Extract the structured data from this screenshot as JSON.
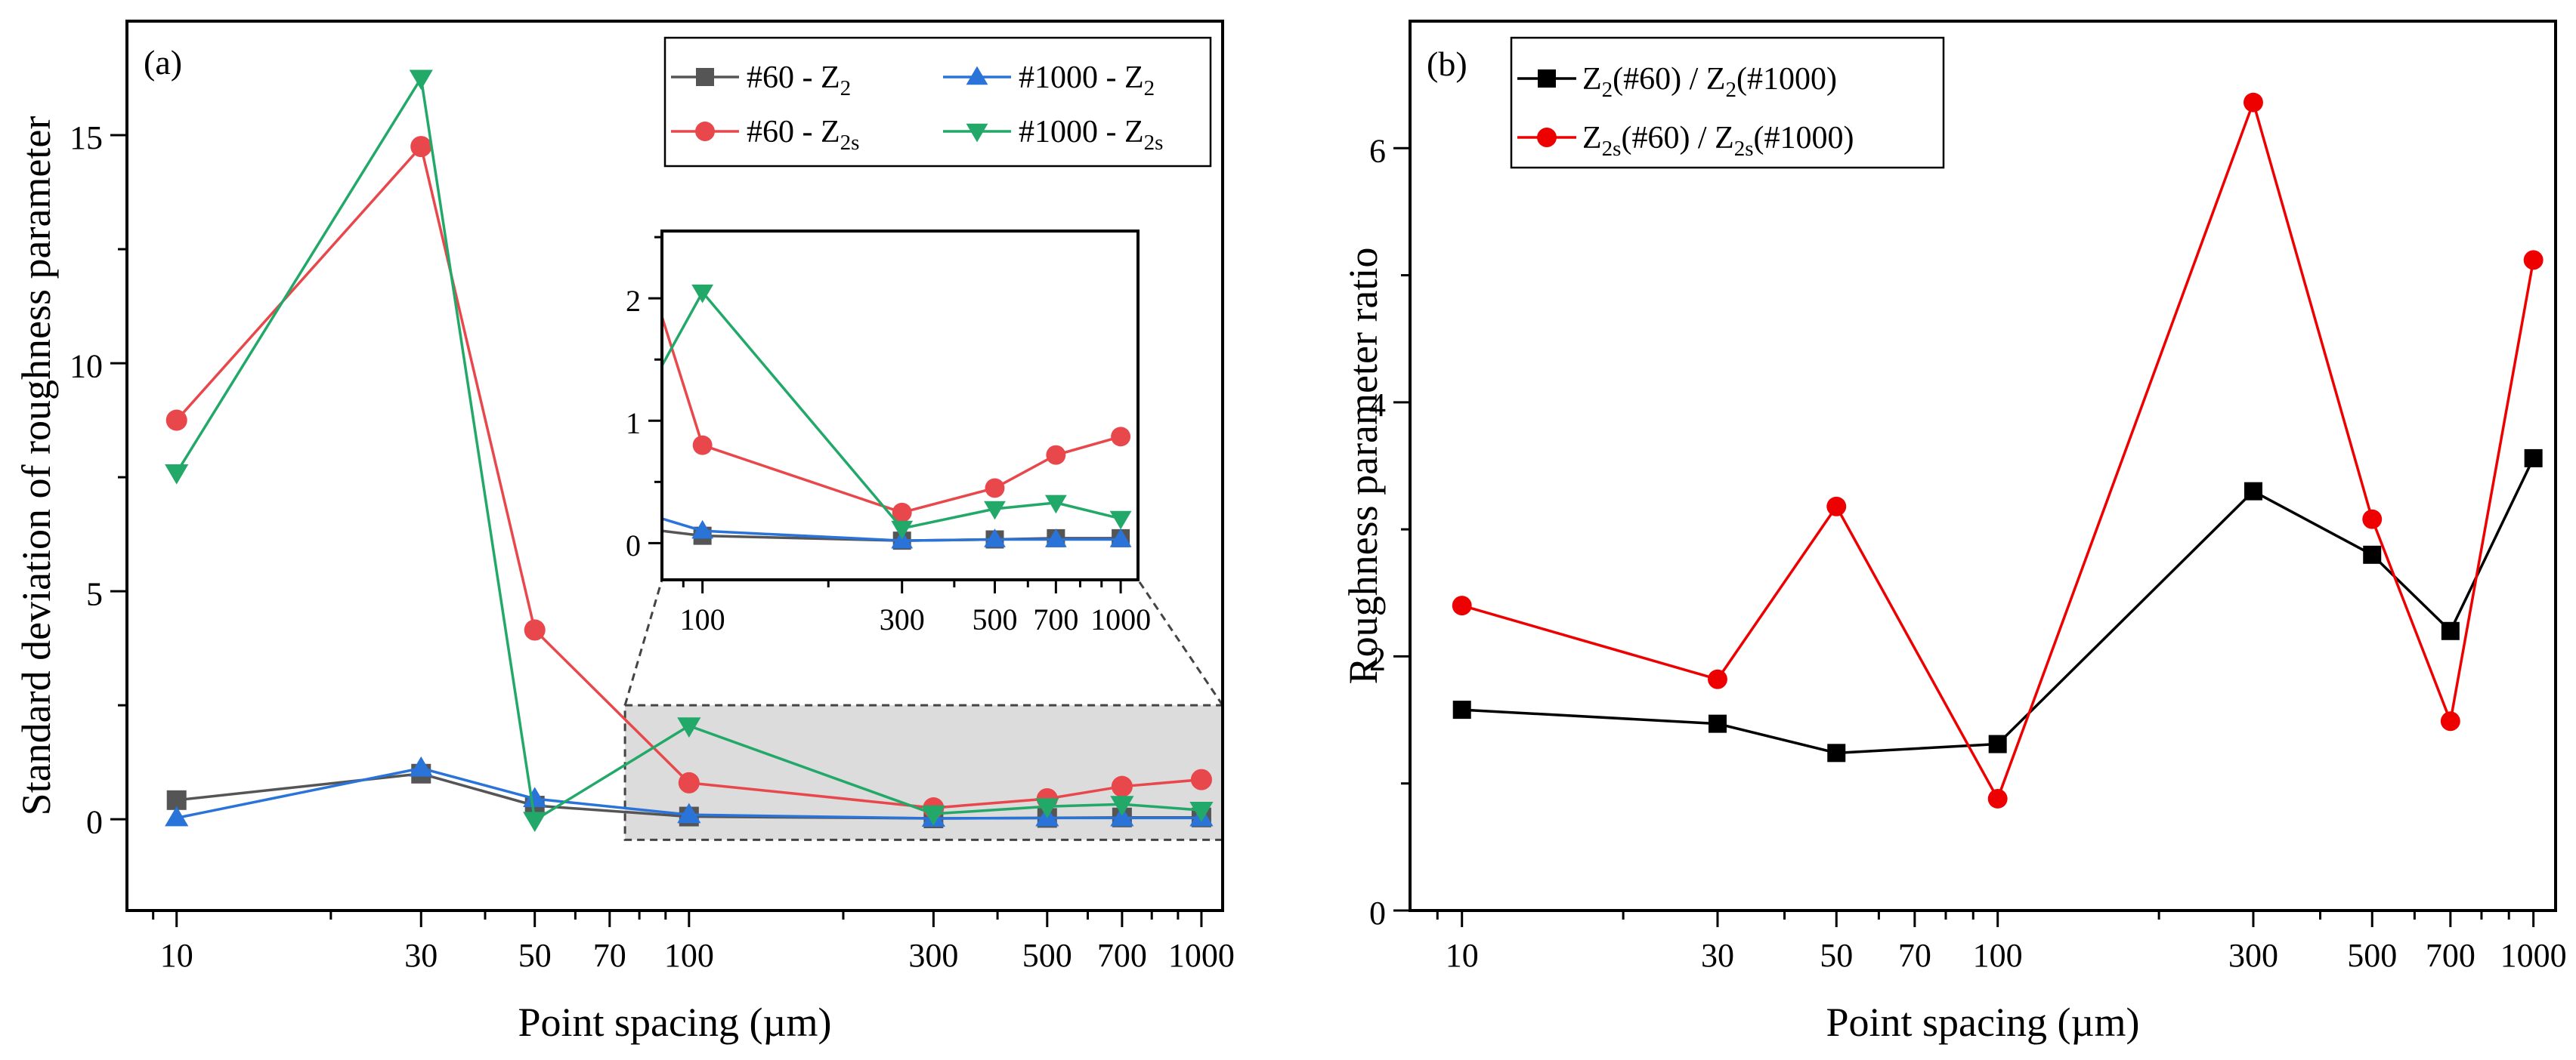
{
  "chart_data": [
    {
      "panel": "(a)",
      "type": "line",
      "x_scale": "log",
      "xlabel": "Point spacing (µm)",
      "ylabel": "Standard deviation of roughness parameter",
      "xlim": [
        8,
        1100
      ],
      "ylim": [
        -2,
        17.5
      ],
      "x_ticks": [
        10,
        30,
        50,
        70,
        100,
        300,
        500,
        700,
        1000
      ],
      "x_tick_labels": [
        "10",
        "30",
        "50",
        "70",
        "100",
        "300",
        "500",
        "700",
        "1000"
      ],
      "y_ticks": [
        0,
        5,
        10,
        15
      ],
      "y_tick_labels": [
        "0",
        "5",
        "10",
        "15"
      ],
      "x": [
        10,
        30,
        50,
        100,
        300,
        500,
        700,
        1000
      ],
      "legend_position": "top-right",
      "series": [
        {
          "name": "#60 - Z2",
          "label_main": "#60 - Z",
          "label_sub": "2",
          "color": "#555555",
          "marker": "square",
          "values": [
            0.42,
            1.0,
            0.3,
            0.06,
            0.02,
            0.03,
            0.04,
            0.04
          ]
        },
        {
          "name": "#1000 - Z2",
          "label_main": "#1000 - Z",
          "label_sub": "2",
          "color": "#2a73d9",
          "marker": "triangle-up",
          "values": [
            0.03,
            1.12,
            0.45,
            0.1,
            0.02,
            0.03,
            0.03,
            0.03
          ]
        },
        {
          "name": "#60 - Z2s",
          "label_main": "#60 - Z",
          "label_sub": "2s",
          "color": "#e8474c",
          "marker": "circle",
          "values": [
            8.75,
            14.75,
            4.15,
            0.8,
            0.25,
            0.45,
            0.72,
            0.87
          ]
        },
        {
          "name": "#1000 - Z2s",
          "label_main": "#1000 - Z",
          "label_sub": "2s",
          "color": "#22a868",
          "marker": "triangle-down",
          "values": [
            7.6,
            16.25,
            -0.02,
            2.05,
            0.12,
            0.28,
            0.33,
            0.2
          ]
        }
      ],
      "highlight_region": {
        "x_range": [
          75,
          1100
        ],
        "y_range": [
          -0.45,
          2.5
        ],
        "color": "#dcdcdc"
      },
      "inset": {
        "xlim": [
          80,
          1100
        ],
        "ylim": [
          -0.3,
          2.55
        ],
        "x_ticks": [
          100,
          300,
          500,
          700,
          1000
        ],
        "x_tick_labels": [
          "100",
          "300",
          "500",
          "700",
          "1000"
        ],
        "y_ticks": [
          0,
          1,
          2
        ],
        "y_tick_labels": [
          "0",
          "1",
          "2"
        ],
        "x": [
          100,
          300,
          500,
          700,
          1000
        ],
        "entry": {
          "x": 80,
          "values": [
            0.1,
            0.2,
            1.85,
            1.45
          ]
        }
      }
    },
    {
      "panel": "(b)",
      "type": "line",
      "x_scale": "log",
      "xlabel": "Point spacing (µm)",
      "ylabel": "Roughness parameter ratio",
      "xlim": [
        8,
        1100
      ],
      "ylim": [
        0,
        7
      ],
      "x_ticks": [
        10,
        30,
        50,
        70,
        100,
        300,
        500,
        700,
        1000
      ],
      "x_tick_labels": [
        "10",
        "30",
        "50",
        "70",
        "100",
        "300",
        "500",
        "700",
        "1000"
      ],
      "y_ticks": [
        0,
        2,
        4,
        6
      ],
      "y_tick_labels": [
        "0",
        "2",
        "4",
        "6"
      ],
      "x": [
        10,
        30,
        50,
        100,
        300,
        500,
        700,
        1000
      ],
      "legend_position": "top-left",
      "series": [
        {
          "name": "Z2(#60) / Z2(#1000)",
          "label_parts": [
            "Z",
            "2",
            "(#60) / Z",
            "2",
            "(#1000)"
          ],
          "color": "#000000",
          "marker": "square",
          "values": [
            1.58,
            1.47,
            1.24,
            1.31,
            3.3,
            2.8,
            2.2,
            3.56
          ]
        },
        {
          "name": "Z2s(#60) / Z2s(#1000)",
          "label_parts": [
            "Z",
            "2s",
            "(#60) / Z",
            "2s",
            "(#1000)"
          ],
          "color": "#ee0000",
          "marker": "circle",
          "values": [
            2.4,
            1.82,
            3.18,
            0.88,
            6.36,
            3.08,
            1.49,
            5.12
          ]
        }
      ]
    }
  ]
}
